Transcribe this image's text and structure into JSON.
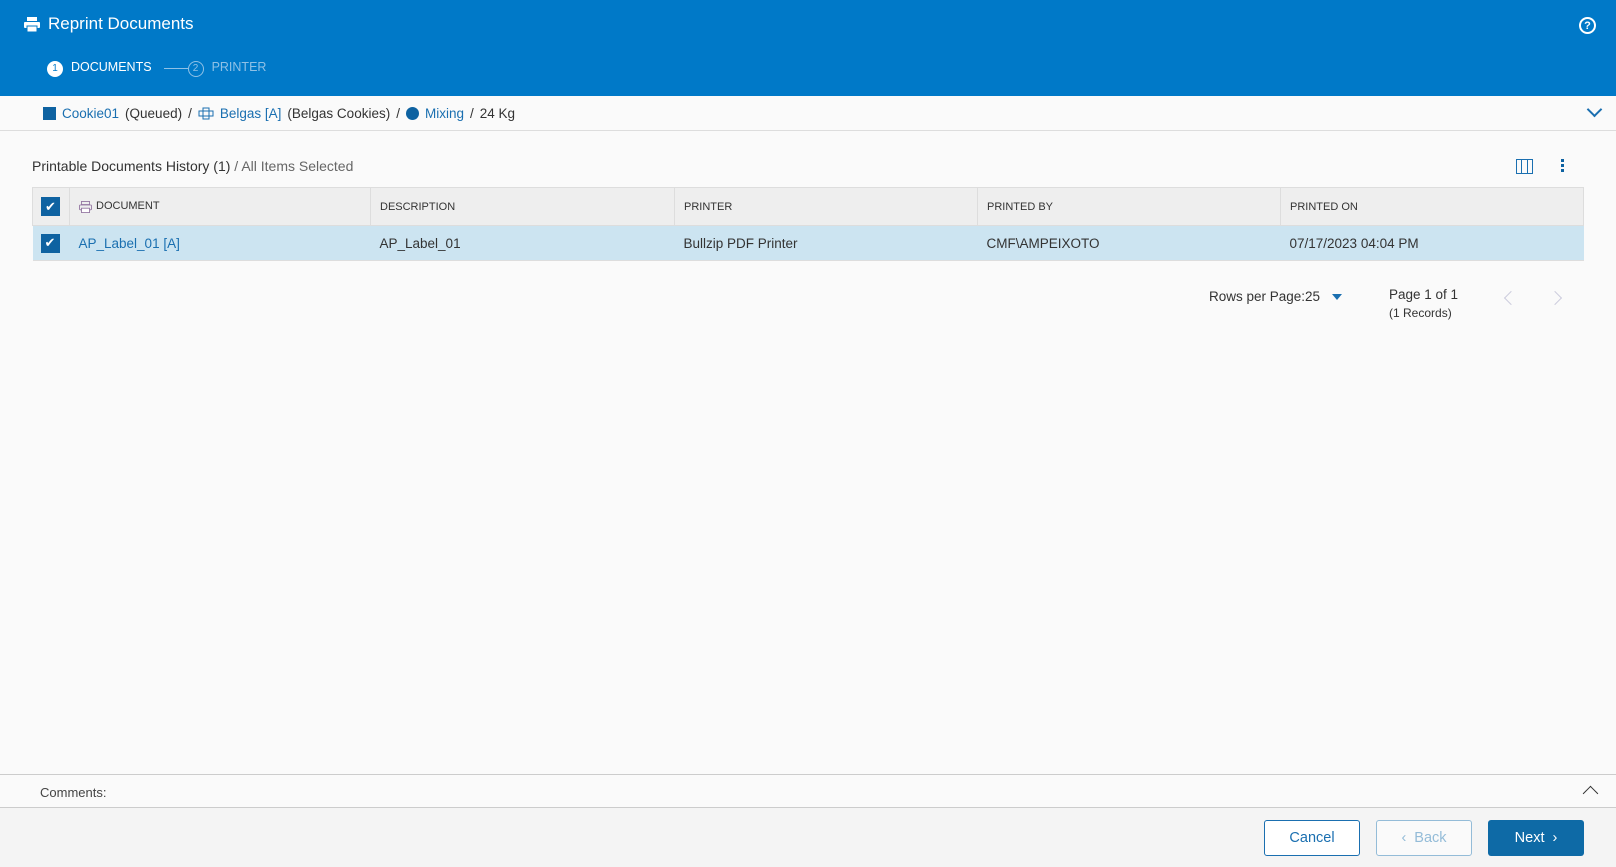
{
  "header": {
    "title": "Reprint Documents",
    "steps": [
      {
        "num": "1",
        "label": "DOCUMENTS"
      },
      {
        "num": "2",
        "label": "PRINTER"
      }
    ],
    "help_icon": "?"
  },
  "breadcrumb": {
    "order": "Cookie01",
    "order_state": "(Queued)",
    "product": "Belgas [A]",
    "product_desc": "(Belgas Cookies)",
    "step": "Mixing",
    "quantity": "24 Kg",
    "sep": "/"
  },
  "section": {
    "title": "Printable Documents History (1)",
    "subtitle": "All Items Selected"
  },
  "table": {
    "columns": [
      "DOCUMENT",
      "DESCRIPTION",
      "PRINTER",
      "PRINTED BY",
      "PRINTED ON"
    ],
    "rows": [
      {
        "document": "AP_Label_01 [A]",
        "description": "AP_Label_01",
        "printer": "Bullzip PDF Printer",
        "printed_by": "CMF\\AMPEIXOTO",
        "printed_on": "07/17/2023 04:04 PM",
        "selected": true
      }
    ]
  },
  "pagination": {
    "rows_per_page": "Rows per Page:25",
    "page": "Page 1 of 1",
    "records": "(1 Records)"
  },
  "comments": {
    "label": "Comments:"
  },
  "footer": {
    "cancel": "Cancel",
    "back": "Back",
    "next": "Next"
  },
  "colors": {
    "header": "#0079c8",
    "accent": "#0e6aa6",
    "row_selected": "#cce4f1"
  }
}
